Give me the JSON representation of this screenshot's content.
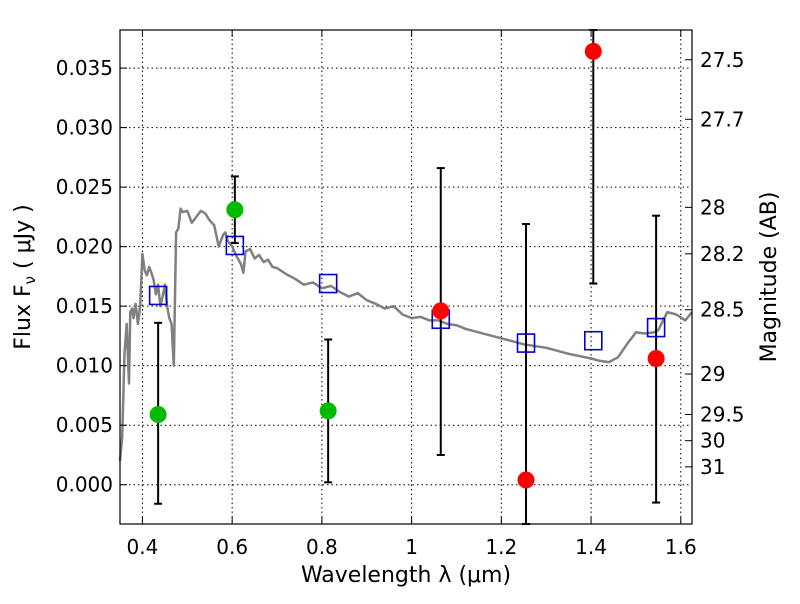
{
  "chart_data": {
    "type": "scatter",
    "xlabel": "Wavelength  λ (μm)",
    "ylabel": "Flux  F",
    "ylabel_sub": "ν",
    "ylabel_units": "  ( μJy )",
    "y2label": "Magnitude (AB)",
    "xlim": [
      0.35,
      1.625
    ],
    "ylim": [
      -0.0033,
      0.0382
    ],
    "grid": true,
    "x_ticks": [
      0.4,
      0.6,
      0.8,
      1.0,
      1.2,
      1.4,
      1.6
    ],
    "x_tick_labels": [
      "0.4",
      "0.6",
      "0.8",
      "1",
      "1.2",
      "1.4",
      "1.6"
    ],
    "y_ticks": [
      0.0,
      0.005,
      0.01,
      0.015,
      0.02,
      0.025,
      0.03,
      0.035
    ],
    "y_tick_labels": [
      "0.000",
      "0.005",
      "0.010",
      "0.015",
      "0.020",
      "0.025",
      "0.030",
      "0.035"
    ],
    "mag_ticks": [
      {
        "label": "27.5",
        "flux": 0.0357
      },
      {
        "label": "27.7",
        "flux": 0.0307
      },
      {
        "label": "28",
        "flux": 0.0233
      },
      {
        "label": "28.2",
        "flux": 0.0194
      },
      {
        "label": "28.5",
        "flux": 0.0147
      },
      {
        "label": "29",
        "flux": 0.0093
      },
      {
        "label": "29.5",
        "flux": 0.0059
      },
      {
        "label": "30",
        "flux": 0.0037
      },
      {
        "label": "31",
        "flux": 0.0015
      }
    ],
    "model_color": "#808080",
    "model_sed": {
      "x": [
        0.35,
        0.355,
        0.36,
        0.365,
        0.37,
        0.373,
        0.377,
        0.38,
        0.385,
        0.39,
        0.395,
        0.4,
        0.405,
        0.41,
        0.415,
        0.42,
        0.425,
        0.43,
        0.435,
        0.44,
        0.445,
        0.45,
        0.455,
        0.46,
        0.465,
        0.47,
        0.475,
        0.48,
        0.485,
        0.49,
        0.5,
        0.51,
        0.52,
        0.53,
        0.54,
        0.55,
        0.56,
        0.57,
        0.575,
        0.58,
        0.585,
        0.59,
        0.6,
        0.61,
        0.62,
        0.625,
        0.63,
        0.64,
        0.65,
        0.66,
        0.67,
        0.68,
        0.69,
        0.7,
        0.72,
        0.74,
        0.76,
        0.78,
        0.8,
        0.82,
        0.84,
        0.86,
        0.88,
        0.9,
        0.92,
        0.94,
        0.96,
        0.98,
        1.0,
        1.02,
        1.04,
        1.06,
        1.08,
        1.1,
        1.12,
        1.15,
        1.2,
        1.25,
        1.3,
        1.35,
        1.4,
        1.42,
        1.44,
        1.46,
        1.48,
        1.5,
        1.52,
        1.54,
        1.55,
        1.57,
        1.59,
        1.61,
        1.625
      ],
      "y": [
        0.002,
        0.004,
        0.011,
        0.0135,
        0.0085,
        0.0145,
        0.0148,
        0.014,
        0.0152,
        0.0135,
        0.015,
        0.0194,
        0.018,
        0.0176,
        0.0183,
        0.0178,
        0.0172,
        0.016,
        0.0168,
        0.015,
        0.0158,
        0.0168,
        0.015,
        0.014,
        0.0135,
        0.01,
        0.0212,
        0.0215,
        0.0232,
        0.0229,
        0.023,
        0.022,
        0.0225,
        0.023,
        0.0228,
        0.0222,
        0.0218,
        0.02,
        0.0205,
        0.021,
        0.0212,
        0.0205,
        0.02,
        0.0192,
        0.0185,
        0.0178,
        0.0196,
        0.0198,
        0.019,
        0.0193,
        0.0187,
        0.0189,
        0.0183,
        0.0182,
        0.0177,
        0.0173,
        0.0168,
        0.017,
        0.0165,
        0.0167,
        0.0162,
        0.0158,
        0.0161,
        0.0155,
        0.0152,
        0.0148,
        0.015,
        0.0143,
        0.014,
        0.0141,
        0.0138,
        0.0138,
        0.0135,
        0.0134,
        0.0131,
        0.0128,
        0.0123,
        0.0118,
        0.0115,
        0.011,
        0.0106,
        0.0104,
        0.0103,
        0.0107,
        0.0118,
        0.0128,
        0.0127,
        0.0128,
        0.013,
        0.0145,
        0.0143,
        0.0138,
        0.0145
      ]
    },
    "series": [
      {
        "marker": "open-square",
        "color": "#0000cc",
        "x": [
          0.435,
          0.606,
          0.814,
          1.065,
          1.255,
          1.405,
          1.545
        ],
        "y": [
          0.0159,
          0.0201,
          0.0169,
          0.0139,
          0.0119,
          0.0121,
          0.0132
        ]
      },
      {
        "marker": "filled-circle",
        "color": "#00bb00",
        "x": [
          0.435,
          0.606,
          0.814
        ],
        "y": [
          0.0059,
          0.0231,
          0.0062
        ],
        "yerr_low": [
          -0.0016,
          0.0203,
          0.0002
        ],
        "yerr_high": [
          0.0136,
          0.0259,
          0.0122
        ]
      },
      {
        "marker": "filled-circle",
        "color": "#ff0000",
        "x": [
          1.065,
          1.255,
          1.405,
          1.545
        ],
        "y": [
          0.0146,
          0.0004,
          0.0364,
          0.0106
        ],
        "yerr_low": [
          0.0025,
          -0.0033,
          0.0169,
          -0.0015
        ],
        "yerr_high": [
          0.0266,
          0.0219,
          0.0382,
          0.0226
        ]
      }
    ]
  }
}
